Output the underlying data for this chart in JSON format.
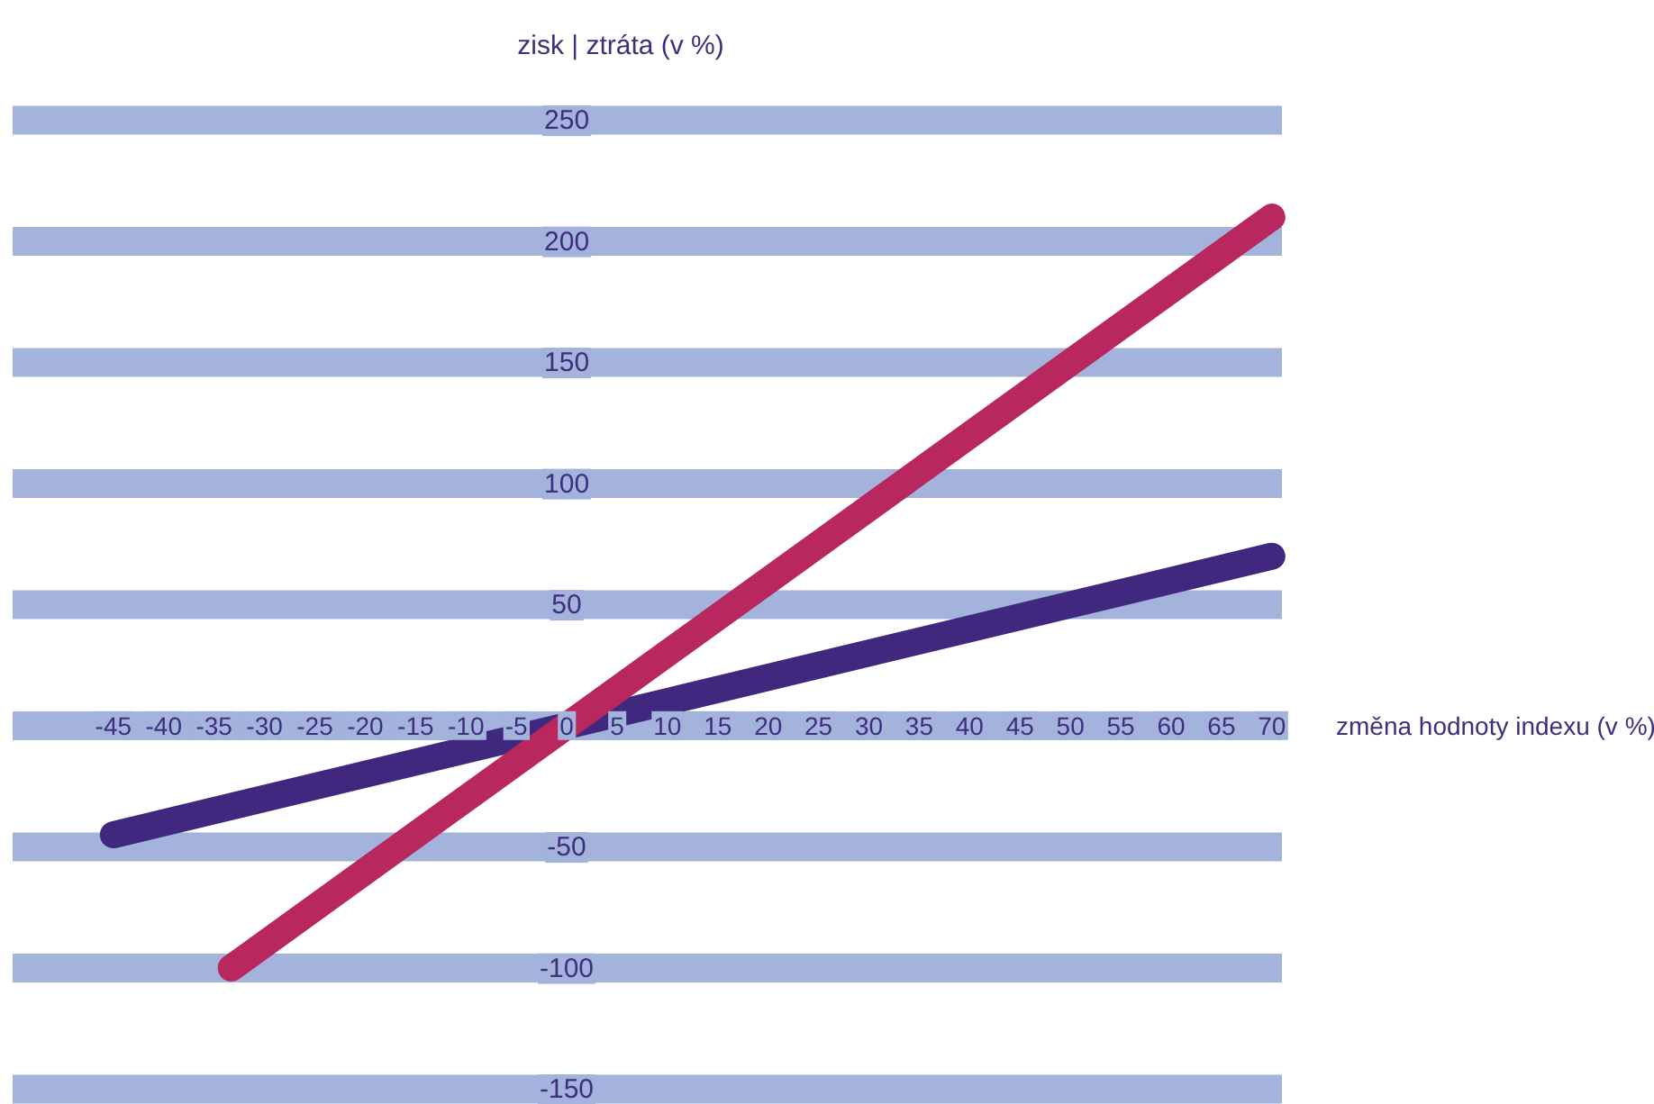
{
  "chart_data": {
    "type": "line",
    "xlabel": "změna hodnoty indexu (v %)",
    "ylabel": "zisk | ztráta (v %)",
    "xlim": [
      -55,
      71
    ],
    "ylim": [
      -150,
      250
    ],
    "xticks": [
      -45,
      -40,
      -35,
      -30,
      -25,
      -20,
      -15,
      -10,
      -5,
      0,
      5,
      10,
      15,
      20,
      25,
      30,
      35,
      40,
      45,
      50,
      55,
      60,
      65,
      70
    ],
    "yticks": [
      -150,
      -100,
      -50,
      {
        "value": 0,
        "label": null
      },
      50,
      100,
      150,
      200,
      250
    ],
    "grid": "y",
    "marker": "none",
    "line_style": "solid",
    "series": [
      {
        "color": "#40287e",
        "x": [
          -45,
          70
        ],
        "values": [
          -45,
          70
        ]
      },
      {
        "color": "#b8285e",
        "x": [
          -33.3,
          70
        ],
        "values": [
          -100,
          210
        ]
      }
    ]
  }
}
